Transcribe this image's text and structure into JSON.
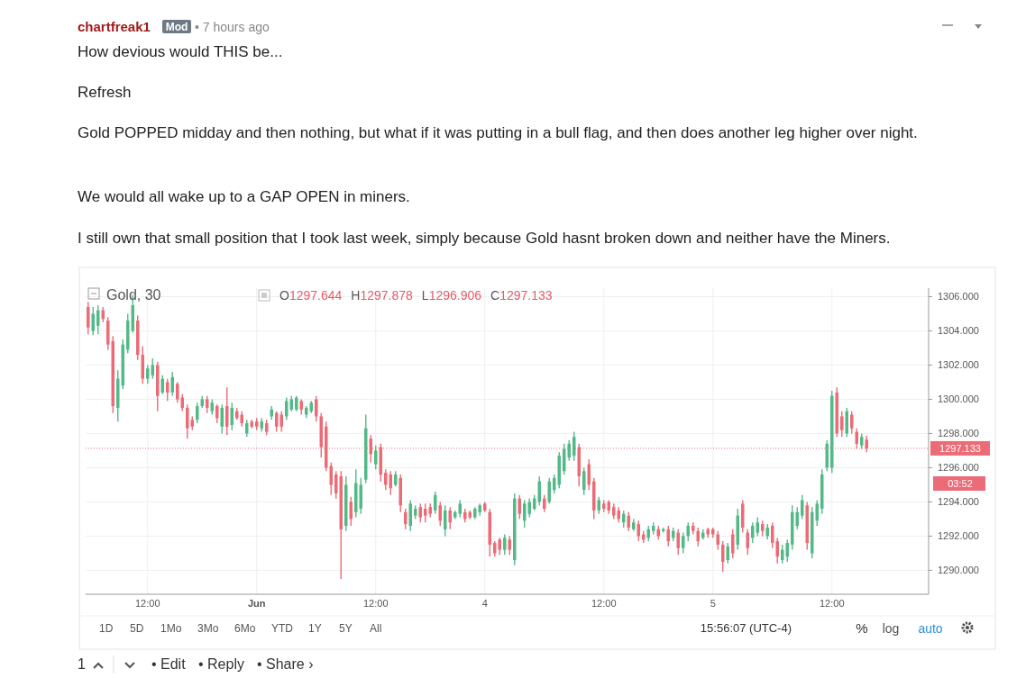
{
  "chart_data": {
    "type": "candlestick",
    "title": "Gold, 30",
    "categories": [
      null,
      null,
      null,
      null,
      null,
      null,
      null,
      null,
      null,
      null,
      null,
      null,
      "12:00",
      null,
      null,
      null,
      null,
      null,
      null,
      null,
      null,
      null,
      null,
      null,
      null,
      null,
      null,
      null,
      null,
      null,
      null,
      null,
      null,
      null,
      "Jun",
      null,
      null,
      null,
      null,
      null,
      null,
      null,
      null,
      null,
      null,
      null,
      null,
      null,
      null,
      null,
      null,
      null,
      null,
      null,
      null,
      null,
      null,
      null,
      "12:00",
      null,
      null,
      null,
      null,
      null,
      null,
      null,
      null,
      null,
      null,
      null,
      null,
      null,
      null,
      null,
      null,
      null,
      null,
      null,
      null,
      null,
      "4",
      null,
      null,
      null,
      null,
      null,
      null,
      null,
      null,
      null,
      null,
      null,
      null,
      null,
      null,
      null,
      null,
      null,
      null,
      null,
      null,
      null,
      null,
      null,
      "12:00",
      null,
      null,
      null,
      null,
      null,
      null,
      null,
      null,
      null,
      null,
      null,
      null,
      null,
      null,
      null,
      null,
      null,
      null,
      null,
      null,
      null,
      "5",
      null,
      null,
      null,
      null,
      null,
      null,
      null,
      null,
      null,
      null,
      null,
      null,
      null,
      null,
      null,
      null,
      null,
      null,
      null,
      null,
      null,
      null,
      null,
      "12:00",
      null,
      null,
      null,
      null,
      null,
      null,
      null,
      null,
      null,
      null,
      null,
      null,
      null,
      null,
      null,
      null,
      null,
      null,
      null
    ],
    "ohlc": [
      [
        1305.4,
        1305.7,
        1303.8,
        1304.2
      ],
      [
        1304,
        1305.4,
        1303.75,
        1305
      ],
      [
        1304.3,
        1305.5,
        1303.8,
        1305.2
      ],
      [
        1305.2,
        1305.4,
        1304.5,
        1304.7
      ],
      [
        1304.6,
        1304.8,
        1302.9,
        1303.2
      ],
      [
        1303.4,
        1303.7,
        1299.2,
        1299.6
      ],
      [
        1299.5,
        1301.7,
        1298.7,
        1301.2
      ],
      [
        1300.8,
        1303.5,
        1300.6,
        1303.2
      ],
      [
        1302.9,
        1305,
        1302.7,
        1304.6
      ],
      [
        1304,
        1306.1,
        1303.9,
        1305.5
      ],
      [
        1304.6,
        1304.9,
        1302.3,
        1302.6
      ],
      [
        1302.6,
        1303.1,
        1300.9,
        1301.2
      ],
      [
        1301.2,
        1302,
        1300.9,
        1301.8
      ],
      [
        1301.4,
        1302.4,
        1301.2,
        1302
      ],
      [
        1302,
        1302.2,
        1299.3,
        1300.2
      ],
      [
        1300.4,
        1301.4,
        1300.3,
        1301.2
      ],
      [
        1301,
        1301.2,
        1299.9,
        1300.4
      ],
      [
        1300.4,
        1301.6,
        1300.2,
        1301.3
      ],
      [
        1300.9,
        1301,
        1299.8,
        1300
      ],
      [
        1300.1,
        1300.3,
        1299.3,
        1299.5
      ],
      [
        1299.5,
        1299.7,
        1297.7,
        1298.3
      ],
      [
        1298.8,
        1299,
        1298.2,
        1298.4
      ],
      [
        1298.8,
        1299.8,
        1298.6,
        1299.6
      ],
      [
        1299.6,
        1300.2,
        1299.5,
        1300
      ],
      [
        1300,
        1300.2,
        1299.2,
        1299.5
      ],
      [
        1299.3,
        1300,
        1299.1,
        1299.8
      ],
      [
        1299.6,
        1299.7,
        1298.6,
        1298.9
      ],
      [
        1298.4,
        1299.7,
        1298,
        1299.5
      ],
      [
        1299.6,
        1300.7,
        1297.9,
        1298.4
      ],
      [
        1298.5,
        1299.8,
        1298.2,
        1299.5
      ],
      [
        1299.3,
        1299.5,
        1298.8,
        1298.9
      ],
      [
        1299.1,
        1299.3,
        1298.4,
        1298.6
      ],
      [
        1298,
        1298.8,
        1297.8,
        1298.6
      ],
      [
        1298.7,
        1298.8,
        1298.3,
        1298.4
      ],
      [
        1298.7,
        1298.9,
        1298.2,
        1298.4
      ],
      [
        1298.3,
        1298.9,
        1298.1,
        1298.7
      ],
      [
        1298.6,
        1298.8,
        1297.9,
        1298.1
      ],
      [
        1299,
        1299.6,
        1298.8,
        1299.4
      ],
      [
        1299.2,
        1299.3,
        1298.1,
        1298.4
      ],
      [
        1299.1,
        1299.3,
        1298.1,
        1298.4
      ],
      [
        1299,
        1300.1,
        1298.8,
        1299.9
      ],
      [
        1299.4,
        1300.2,
        1299.3,
        1300
      ],
      [
        1299.4,
        1300.2,
        1299.3,
        1300.1
      ],
      [
        1299.9,
        1300,
        1299.1,
        1299.4
      ],
      [
        1299.1,
        1299.6,
        1298.9,
        1299.5
      ],
      [
        1299.3,
        1299.9,
        1299.2,
        1299.8
      ],
      [
        1300,
        1300.2,
        1298.7,
        1299
      ],
      [
        1299,
        1299.2,
        1296.6,
        1297.2
      ],
      [
        1298.4,
        1298.7,
        1295.8,
        1296
      ],
      [
        1296.1,
        1296.3,
        1294.4,
        1295
      ],
      [
        1295.6,
        1295.8,
        1294.2,
        1294.5
      ],
      [
        1295.5,
        1295.8,
        1289.5,
        1292.4
      ],
      [
        1292.6,
        1295.5,
        1292.3,
        1295
      ],
      [
        1294,
        1294.3,
        1292.6,
        1293
      ],
      [
        1293.4,
        1295.9,
        1293.1,
        1295.1
      ],
      [
        1293.6,
        1295.4,
        1293.3,
        1295
      ],
      [
        1295.3,
        1299.1,
        1295.1,
        1298.3
      ],
      [
        1297.7,
        1297.9,
        1296.3,
        1296.8
      ],
      [
        1296.2,
        1297.3,
        1295.9,
        1297
      ],
      [
        1297.2,
        1297.4,
        1295.2,
        1295.6
      ],
      [
        1295.7,
        1295.9,
        1294.7,
        1295
      ],
      [
        1295.6,
        1295.8,
        1294.4,
        1294.8
      ],
      [
        1295,
        1295.8,
        1294.9,
        1295.6
      ],
      [
        1295.4,
        1295.6,
        1293.4,
        1293.8
      ],
      [
        1293.4,
        1293.6,
        1292.4,
        1292.7
      ],
      [
        1292.6,
        1294.1,
        1292.3,
        1293.9
      ],
      [
        1293.2,
        1293.8,
        1293,
        1293.6
      ],
      [
        1293.7,
        1293.9,
        1292.8,
        1293.1
      ],
      [
        1293.6,
        1293.9,
        1292.8,
        1293.2
      ],
      [
        1293.7,
        1293.9,
        1293.1,
        1293.3
      ],
      [
        1293.5,
        1294.6,
        1293.3,
        1294.4
      ],
      [
        1293.8,
        1294,
        1292.6,
        1292.9
      ],
      [
        1292.4,
        1293.8,
        1292,
        1293.5
      ],
      [
        1293.5,
        1293.7,
        1292.4,
        1292.8
      ],
      [
        1293.1,
        1293.5,
        1293,
        1293.4
      ],
      [
        1293.3,
        1294.1,
        1293.1,
        1293.9
      ],
      [
        1293.4,
        1293.6,
        1292.8,
        1293
      ],
      [
        1293.4,
        1293.5,
        1293,
        1293.1
      ],
      [
        1293.1,
        1293.7,
        1293,
        1293.6
      ],
      [
        1293.4,
        1293.9,
        1293.2,
        1293.8
      ],
      [
        1293.9,
        1294,
        1293.4,
        1293.5
      ],
      [
        1293.4,
        1293.6,
        1290.8,
        1291.5
      ],
      [
        1291.6,
        1291.7,
        1290.8,
        1291
      ],
      [
        1291.8,
        1291.9,
        1290.9,
        1291.2
      ],
      [
        1291.2,
        1292.1,
        1290.9,
        1291.9
      ],
      [
        1291.8,
        1292,
        1290.9,
        1291.2
      ],
      [
        1290.6,
        1294.5,
        1290.3,
        1294.2
      ],
      [
        1294.2,
        1294.4,
        1293,
        1293.3
      ],
      [
        1292.9,
        1294.1,
        1292.5,
        1293.9
      ],
      [
        1293.3,
        1294.2,
        1293.1,
        1294
      ],
      [
        1293.6,
        1294.4,
        1293.5,
        1294.2
      ],
      [
        1294,
        1295.5,
        1293.8,
        1295.2
      ],
      [
        1294.2,
        1294.4,
        1293.4,
        1293.6
      ],
      [
        1294,
        1295.4,
        1293.9,
        1295.2
      ],
      [
        1294.7,
        1295.6,
        1294.5,
        1295.4
      ],
      [
        1295,
        1296.9,
        1294.8,
        1296.7
      ],
      [
        1295.8,
        1297.4,
        1295.6,
        1297.1
      ],
      [
        1296.6,
        1297.6,
        1296.4,
        1297.4
      ],
      [
        1296.7,
        1298.1,
        1296.4,
        1297.8
      ],
      [
        1297.2,
        1297.4,
        1294.9,
        1295.5
      ],
      [
        1294.7,
        1296,
        1294.4,
        1295.8
      ],
      [
        1296.2,
        1296.5,
        1294.7,
        1295
      ],
      [
        1295.2,
        1295.4,
        1293,
        1293.5
      ],
      [
        1293.5,
        1294.3,
        1293.3,
        1294.1
      ],
      [
        1293.9,
        1294.1,
        1293.4,
        1293.6
      ],
      [
        1294,
        1294.1,
        1293.3,
        1293.5
      ],
      [
        1293.7,
        1293.9,
        1293,
        1293.2
      ],
      [
        1293.5,
        1293.7,
        1292.8,
        1293
      ],
      [
        1292.8,
        1293.5,
        1292.5,
        1293.3
      ],
      [
        1293.2,
        1293.4,
        1292.3,
        1292.5
      ],
      [
        1292.4,
        1293,
        1292.3,
        1292.8
      ],
      [
        1292.7,
        1292.9,
        1291.7,
        1292
      ],
      [
        1292.1,
        1292.3,
        1291.6,
        1291.8
      ],
      [
        1291.9,
        1292.6,
        1291.7,
        1292.4
      ],
      [
        1292.3,
        1292.8,
        1292.1,
        1292.6
      ],
      [
        1292.4,
        1292.6,
        1291.8,
        1292
      ],
      [
        1292.3,
        1292.5,
        1292.2,
        1292.4
      ],
      [
        1292.4,
        1292.6,
        1291.4,
        1291.7
      ],
      [
        1291.9,
        1292.5,
        1291.7,
        1292.3
      ],
      [
        1292.2,
        1292.4,
        1290.9,
        1291.3
      ],
      [
        1291.3,
        1292.2,
        1291,
        1292
      ],
      [
        1292,
        1292.8,
        1291.7,
        1292.6
      ],
      [
        1292.6,
        1292.8,
        1292.1,
        1292.3
      ],
      [
        1292.3,
        1292.5,
        1291.4,
        1291.7
      ],
      [
        1291.9,
        1292.4,
        1291.8,
        1292.2
      ],
      [
        1292.4,
        1292.5,
        1291.9,
        1292.1
      ],
      [
        1292.4,
        1292.5,
        1291.9,
        1292.1
      ],
      [
        1292.1,
        1292.3,
        1291.2,
        1291.5
      ],
      [
        1291.5,
        1291.7,
        1289.9,
        1290.5
      ],
      [
        1290.6,
        1291.6,
        1290.4,
        1291.4
      ],
      [
        1292.1,
        1292.4,
        1290.7,
        1291
      ],
      [
        1291.5,
        1293.6,
        1291.2,
        1293.2
      ],
      [
        1293.9,
        1294.1,
        1292.2,
        1292.5
      ],
      [
        1292.2,
        1292.4,
        1290.9,
        1291.3
      ],
      [
        1291.9,
        1292.8,
        1291.6,
        1292.6
      ],
      [
        1292.2,
        1293.1,
        1292,
        1292.8
      ],
      [
        1292.7,
        1292.9,
        1292,
        1292.3
      ],
      [
        1292,
        1292.7,
        1291.8,
        1292.5
      ],
      [
        1292.6,
        1292.8,
        1291.3,
        1291.6
      ],
      [
        1291.7,
        1291.9,
        1290.4,
        1290.8
      ],
      [
        1290.6,
        1291.5,
        1290.4,
        1291.2
      ],
      [
        1290.8,
        1291.8,
        1290.5,
        1291.6
      ],
      [
        1291.5,
        1293.8,
        1291.2,
        1293.4
      ],
      [
        1292.6,
        1293.7,
        1292.4,
        1293.4
      ],
      [
        1293.2,
        1294.4,
        1293,
        1294.1
      ],
      [
        1293.8,
        1294,
        1291.2,
        1291.6
      ],
      [
        1291,
        1293.7,
        1290.7,
        1293.4
      ],
      [
        1292.9,
        1294.1,
        1292.6,
        1293.9
      ],
      [
        1293.6,
        1295.9,
        1293.3,
        1295.6
      ],
      [
        1296,
        1297.6,
        1295.8,
        1297.4
      ],
      [
        1296,
        1300.5,
        1295.7,
        1300.2
      ],
      [
        1300.4,
        1300.7,
        1297.8,
        1298
      ],
      [
        1299,
        1299.3,
        1297.8,
        1298.2
      ],
      [
        1298,
        1299.5,
        1297.8,
        1299.3
      ],
      [
        1299.1,
        1299.3,
        1298,
        1298.3
      ],
      [
        1298.1,
        1298.3,
        1297.1,
        1297.4
      ],
      [
        1297.3,
        1298,
        1297.1,
        1297.8
      ],
      [
        1297.644,
        1297.878,
        1296.906,
        1297.133
      ],
      null,
      null,
      null,
      null,
      null,
      null,
      null,
      null,
      null,
      null,
      null,
      null
    ],
    "ylim": [
      1288.6,
      1306.5
    ],
    "yticks": [
      {
        "value": 1290,
        "label": "1290.000"
      },
      {
        "value": 1292,
        "label": "1292.000"
      },
      {
        "value": 1294,
        "label": "1294.000"
      },
      {
        "value": 1296,
        "label": "1296.000"
      },
      {
        "value": 1298,
        "label": "1298.000"
      },
      {
        "value": 1300,
        "label": "1300.000"
      },
      {
        "value": 1302,
        "label": "1302.000"
      },
      {
        "value": 1304,
        "label": "1304.000"
      },
      {
        "value": 1306,
        "label": "1306.000"
      }
    ],
    "grid": true,
    "ref_lines": [
      {
        "axis": "y",
        "value": 1297.133,
        "label": "1297.133",
        "color": "#eb6b76",
        "line_style": "dotted"
      }
    ],
    "annotations": [
      "chartfreak1",
      "Mod",
      "• 7 hours ago",
      "How devious would THIS be...",
      "Refresh",
      "Gold POPPED midday and then nothing, but what if it was putting in a bull flag, and then does another leg higher over night.",
      "We would all wake up to a GAP OPEN in miners.",
      "I still own that small position that I took last week, simply because Gold hasnt broken down and neither have the Miners.",
      "O1297.644 H1297.878 L1296.906 C1297.133",
      "1D 5D 1Mo 3Mo 6Mo YTD 1Y 5Y All",
      "15:56:07 (UTC-4)",
      "%",
      "log",
      "auto",
      "03:52",
      "1",
      "• Edit",
      "• Reply",
      "• Share ›"
    ]
  }
}
